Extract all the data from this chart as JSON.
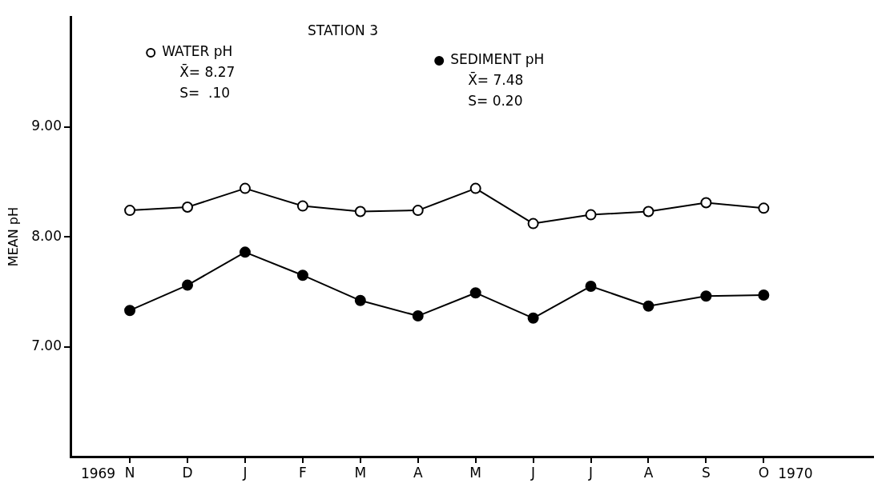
{
  "chart_data": {
    "type": "line",
    "title": "STATION 3",
    "ylabel": "MEAN pH",
    "categories": [
      "N",
      "D",
      "J",
      "F",
      "M",
      "A",
      "M",
      "J",
      "J",
      "A",
      "S",
      "O"
    ],
    "series": [
      {
        "name": "WATER pH",
        "color": "#ffffff",
        "values": [
          8.24,
          8.27,
          8.44,
          8.28,
          8.23,
          8.24,
          8.44,
          8.12,
          8.2,
          8.23,
          8.31,
          8.26
        ]
      },
      {
        "name": "SEDIMENT pH",
        "color": "#000000",
        "values": [
          7.33,
          7.56,
          7.86,
          7.65,
          7.42,
          7.28,
          7.49,
          7.26,
          7.55,
          7.37,
          7.46,
          7.47
        ]
      }
    ],
    "annotations": [
      "X̄= 8.27",
      "S=  .10",
      "X̄= 7.48",
      "S= 0.20",
      "1969",
      "1970"
    ],
    "ylim": [
      6,
      10
    ],
    "yticks": [
      {
        "value": 7,
        "label": "7.00"
      },
      {
        "value": 8,
        "label": "8.00"
      },
      {
        "value": 9,
        "label": "9.00"
      }
    ],
    "grid": false,
    "legend": "top left",
    "marker": "circle",
    "line_style": "solid"
  }
}
